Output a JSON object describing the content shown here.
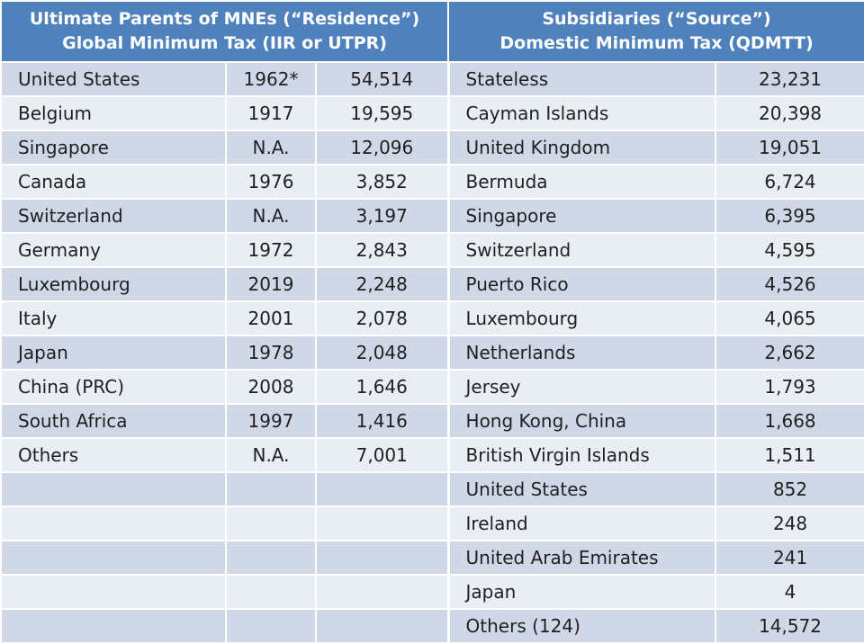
{
  "header": {
    "left_line1": "Ultimate Parents of MNEs (“Residence”)",
    "left_line2": "Global Minimum Tax (IIR or UTPR)",
    "right_line1": "Subsidiaries (“Source”)",
    "right_line2": "Domestic Minimum Tax (QDMTT)"
  },
  "rows": [
    {
      "l_country": "United States",
      "l_year": "1962*",
      "l_value": "54,514",
      "r_country": "Stateless",
      "r_value": "23,231"
    },
    {
      "l_country": "Belgium",
      "l_year": "1917",
      "l_value": "19,595",
      "r_country": "Cayman Islands",
      "r_value": "20,398"
    },
    {
      "l_country": "Singapore",
      "l_year": "N.A.",
      "l_value": "12,096",
      "r_country": "United Kingdom",
      "r_value": "19,051"
    },
    {
      "l_country": "Canada",
      "l_year": "1976",
      "l_value": "3,852",
      "r_country": "Bermuda",
      "r_value": "6,724"
    },
    {
      "l_country": "Switzerland",
      "l_year": "N.A.",
      "l_value": "3,197",
      "r_country": "Singapore",
      "r_value": "6,395"
    },
    {
      "l_country": "Germany",
      "l_year": "1972",
      "l_value": "2,843",
      "r_country": "Switzerland",
      "r_value": "4,595"
    },
    {
      "l_country": "Luxembourg",
      "l_year": "2019",
      "l_value": "2,248",
      "r_country": "Puerto Rico",
      "r_value": "4,526"
    },
    {
      "l_country": "Italy",
      "l_year": "2001",
      "l_value": "2,078",
      "r_country": "Luxembourg",
      "r_value": "4,065"
    },
    {
      "l_country": "Japan",
      "l_year": "1978",
      "l_value": "2,048",
      "r_country": "Netherlands",
      "r_value": "2,662"
    },
    {
      "l_country": "China (PRC)",
      "l_year": "2008",
      "l_value": "1,646",
      "r_country": "Jersey",
      "r_value": "1,793"
    },
    {
      "l_country": "South Africa",
      "l_year": "1997",
      "l_value": "1,416",
      "r_country": "Hong Kong, China",
      "r_value": "1,668"
    },
    {
      "l_country": "Others",
      "l_year": "N.A.",
      "l_value": "7,001",
      "r_country": "British Virgin Islands",
      "r_value": "1,511"
    },
    {
      "l_country": "",
      "l_year": "",
      "l_value": "",
      "r_country": "United States",
      "r_value": "852"
    },
    {
      "l_country": "",
      "l_year": "",
      "l_value": "",
      "r_country": "Ireland",
      "r_value": "248"
    },
    {
      "l_country": "",
      "l_year": "",
      "l_value": "",
      "r_country": "United Arab Emirates",
      "r_value": "241"
    },
    {
      "l_country": "",
      "l_year": "",
      "l_value": "",
      "r_country": "Japan",
      "r_value": "4"
    },
    {
      "l_country": "",
      "l_year": "",
      "l_value": "",
      "r_country": "Others (124)",
      "r_value": "14,572"
    }
  ]
}
